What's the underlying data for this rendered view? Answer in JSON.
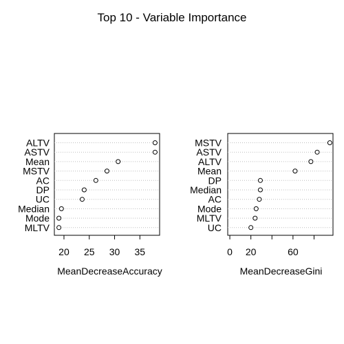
{
  "title": "Top 10 - Variable Importance",
  "chart_data": [
    {
      "type": "scatter",
      "subtype": "dotchart",
      "xlabel": "MeanDecreaseAccuracy",
      "categories": [
        "ALTV",
        "ASTV",
        "Mean",
        "MSTV",
        "AC",
        "DP",
        "UC",
        "Median",
        "Mode",
        "MLTV"
      ],
      "values": [
        38.0,
        38.0,
        30.7,
        28.5,
        26.3,
        24.0,
        23.6,
        19.5,
        19.0,
        19.0
      ],
      "xlim": [
        18.1,
        38.9
      ],
      "xticks": [
        20,
        25,
        30,
        35
      ],
      "grid": "dotted-horizontal"
    },
    {
      "type": "scatter",
      "subtype": "dotchart",
      "xlabel": "MeanDecreaseGini",
      "categories": [
        "MSTV",
        "ASTV",
        "ALTV",
        "Mean",
        "DP",
        "Median",
        "AC",
        "Mode",
        "MLTV",
        "UC"
      ],
      "values": [
        95,
        83,
        77,
        62,
        29,
        29,
        28,
        25,
        24,
        20
      ],
      "xlim": [
        -2,
        98
      ],
      "xticks": [
        0,
        20,
        40,
        60,
        80
      ],
      "xtick_labels": [
        "0",
        "20",
        "",
        "60",
        ""
      ],
      "grid": "dotted-horizontal"
    }
  ]
}
